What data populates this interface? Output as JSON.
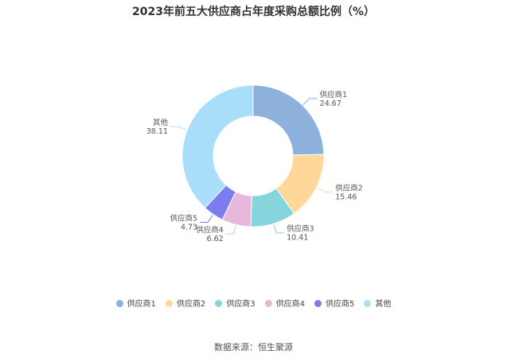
{
  "chart_data": {
    "type": "pie",
    "title": "2023年前五大供应商占年度采购总额比例（%）",
    "slices": [
      {
        "label": "供应商1",
        "value": 24.67,
        "value_text": "24.67",
        "color": "#8eb0dc"
      },
      {
        "label": "供应商2",
        "value": 15.46,
        "value_text": "15.46",
        "color": "#ffd899"
      },
      {
        "label": "供应商3",
        "value": 10.41,
        "value_text": "10.41",
        "color": "#86d5dc"
      },
      {
        "label": "供应商4",
        "value": 6.62,
        "value_text": "6.62",
        "color": "#e8b8da"
      },
      {
        "label": "供应商5",
        "value": 4.73,
        "value_text": "4.73",
        "color": "#7b7cf0"
      },
      {
        "label": "其他",
        "value": 38.11,
        "value_text": "38.11",
        "color": "#a8defa"
      }
    ],
    "donut": true,
    "legend_position": "bottom"
  },
  "source": "数据来源：恒生聚源"
}
